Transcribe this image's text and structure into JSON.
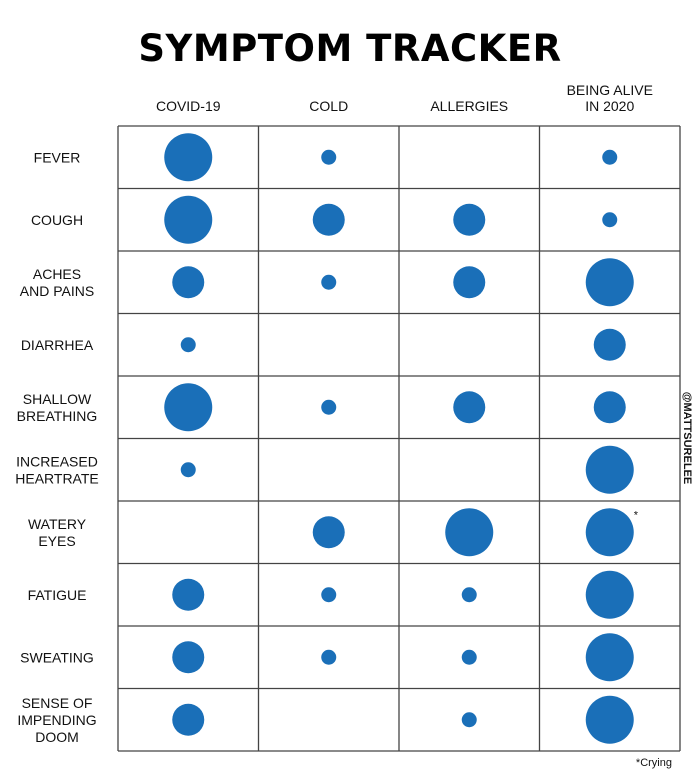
{
  "chart_data": {
    "type": "bubble-matrix",
    "title": "SYMPTOM TRACKER",
    "columns": [
      "COVID-19",
      "COLD",
      "ALLERGIES",
      "BEING ALIVE IN 2020"
    ],
    "column_label_lines": [
      [
        "COVID-19"
      ],
      [
        "COLD"
      ],
      [
        "ALLERGIES"
      ],
      [
        "BEING ALIVE",
        "IN 2020"
      ]
    ],
    "rows": [
      "FEVER",
      "COUGH",
      "ACHES AND PAINS",
      "DIARRHEA",
      "SHALLOW BREATHING",
      "INCREASED HEARTRATE",
      "WATERY EYES",
      "FATIGUE",
      "SWEATING",
      "SENSE OF IMPENDING DOOM"
    ],
    "row_label_lines": [
      [
        "FEVER"
      ],
      [
        "COUGH"
      ],
      [
        "ACHES",
        "AND PAINS"
      ],
      [
        "DIARRHEA"
      ],
      [
        "SHALLOW",
        "BREATHING"
      ],
      [
        "INCREASED",
        "HEARTRATE"
      ],
      [
        "WATERY",
        "EYES"
      ],
      [
        "FATIGUE"
      ],
      [
        "SWEATING"
      ],
      [
        "SENSE OF",
        "IMPENDING",
        "DOOM"
      ]
    ],
    "size_scale": {
      "0": "none",
      "1": "small",
      "2": "medium",
      "3": "large"
    },
    "values": [
      [
        3,
        1,
        0,
        1
      ],
      [
        3,
        2,
        2,
        1
      ],
      [
        2,
        1,
        2,
        3
      ],
      [
        1,
        0,
        0,
        2
      ],
      [
        3,
        1,
        2,
        2
      ],
      [
        1,
        0,
        0,
        3
      ],
      [
        0,
        2,
        3,
        3
      ],
      [
        2,
        1,
        1,
        3
      ],
      [
        2,
        1,
        1,
        3
      ],
      [
        2,
        0,
        1,
        3
      ]
    ],
    "footnote_marker": {
      "row": 6,
      "column": 3,
      "symbol": "*"
    },
    "footnote": "*Crying",
    "watermark": "@MATTSURELEE",
    "colors": {
      "bubble": "#1a6fb8",
      "grid": "#444444"
    }
  }
}
